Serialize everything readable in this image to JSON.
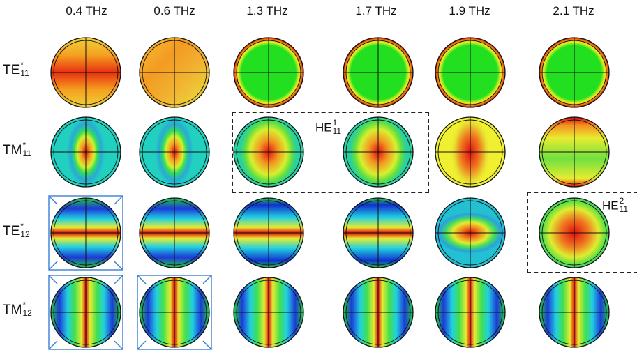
{
  "columns": [
    {
      "label": "0.4 THz"
    },
    {
      "label": "0.6 THz"
    },
    {
      "label": "1.3 THz"
    },
    {
      "label": "1.7 THz"
    },
    {
      "label": "1.9 THz"
    },
    {
      "label": "2.1 THz"
    }
  ],
  "rows": [
    {
      "base": "TE",
      "sup": "*",
      "sub": "11"
    },
    {
      "base": "TM",
      "sup": "*",
      "sub": "11"
    },
    {
      "base": "TE",
      "sup": "*",
      "sub": "12"
    },
    {
      "base": "TM",
      "sup": "*",
      "sub": "12"
    }
  ],
  "highlights": [
    {
      "base": "HE",
      "sup": "1",
      "sub": "11"
    },
    {
      "base": "HE",
      "sup": "2",
      "sub": "11"
    }
  ],
  "colors": {
    "outline": "#111111",
    "crosshair": "#111111",
    "overlay_square": "#3a7fd5",
    "highlight_border": "#222222"
  }
}
